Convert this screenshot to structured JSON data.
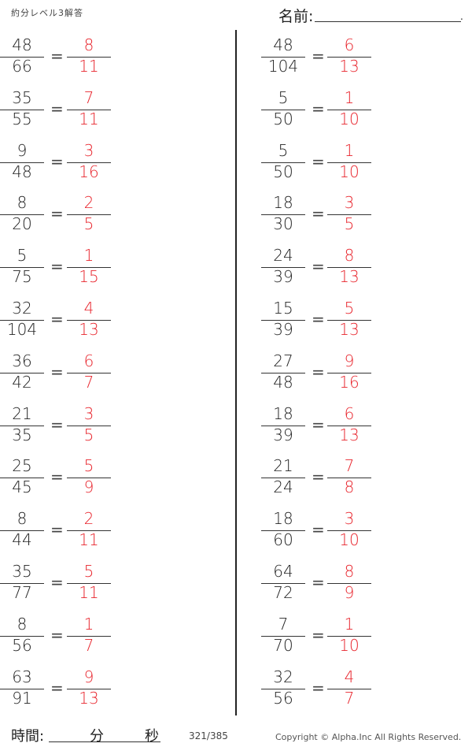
{
  "header": {
    "title": "約分レベル3解答",
    "name_label": "名前:",
    "name_end": "."
  },
  "colors": {
    "answer": "#e8242c",
    "text": "#222222"
  },
  "equals": "=",
  "left_column": [
    {
      "num": "48",
      "den": "66",
      "ans_num": "8",
      "ans_den": "11"
    },
    {
      "num": "35",
      "den": "55",
      "ans_num": "7",
      "ans_den": "11"
    },
    {
      "num": "9",
      "den": "48",
      "ans_num": "3",
      "ans_den": "16"
    },
    {
      "num": "8",
      "den": "20",
      "ans_num": "2",
      "ans_den": "5"
    },
    {
      "num": "5",
      "den": "75",
      "ans_num": "1",
      "ans_den": "15"
    },
    {
      "num": "32",
      "den": "104",
      "ans_num": "4",
      "ans_den": "13"
    },
    {
      "num": "36",
      "den": "42",
      "ans_num": "6",
      "ans_den": "7"
    },
    {
      "num": "21",
      "den": "35",
      "ans_num": "3",
      "ans_den": "5"
    },
    {
      "num": "25",
      "den": "45",
      "ans_num": "5",
      "ans_den": "9"
    },
    {
      "num": "8",
      "den": "44",
      "ans_num": "2",
      "ans_den": "11"
    },
    {
      "num": "35",
      "den": "77",
      "ans_num": "5",
      "ans_den": "11"
    },
    {
      "num": "8",
      "den": "56",
      "ans_num": "1",
      "ans_den": "7"
    },
    {
      "num": "63",
      "den": "91",
      "ans_num": "9",
      "ans_den": "13"
    }
  ],
  "right_column": [
    {
      "num": "48",
      "den": "104",
      "ans_num": "6",
      "ans_den": "13"
    },
    {
      "num": "5",
      "den": "50",
      "ans_num": "1",
      "ans_den": "10"
    },
    {
      "num": "5",
      "den": "50",
      "ans_num": "1",
      "ans_den": "10"
    },
    {
      "num": "18",
      "den": "30",
      "ans_num": "3",
      "ans_den": "5"
    },
    {
      "num": "24",
      "den": "39",
      "ans_num": "8",
      "ans_den": "13"
    },
    {
      "num": "15",
      "den": "39",
      "ans_num": "5",
      "ans_den": "13"
    },
    {
      "num": "27",
      "den": "48",
      "ans_num": "9",
      "ans_den": "16"
    },
    {
      "num": "18",
      "den": "39",
      "ans_num": "6",
      "ans_den": "13"
    },
    {
      "num": "21",
      "den": "24",
      "ans_num": "7",
      "ans_den": "8"
    },
    {
      "num": "18",
      "den": "60",
      "ans_num": "3",
      "ans_den": "10"
    },
    {
      "num": "64",
      "den": "72",
      "ans_num": "8",
      "ans_den": "9"
    },
    {
      "num": "7",
      "den": "70",
      "ans_num": "1",
      "ans_den": "10"
    },
    {
      "num": "32",
      "den": "56",
      "ans_num": "4",
      "ans_den": "7"
    }
  ],
  "footer": {
    "time_label": "時間:",
    "minutes": "分",
    "seconds": "秒",
    "page": "321/385",
    "copyright": "Copyright ©  Alpha.Inc All Rights Reserved."
  }
}
